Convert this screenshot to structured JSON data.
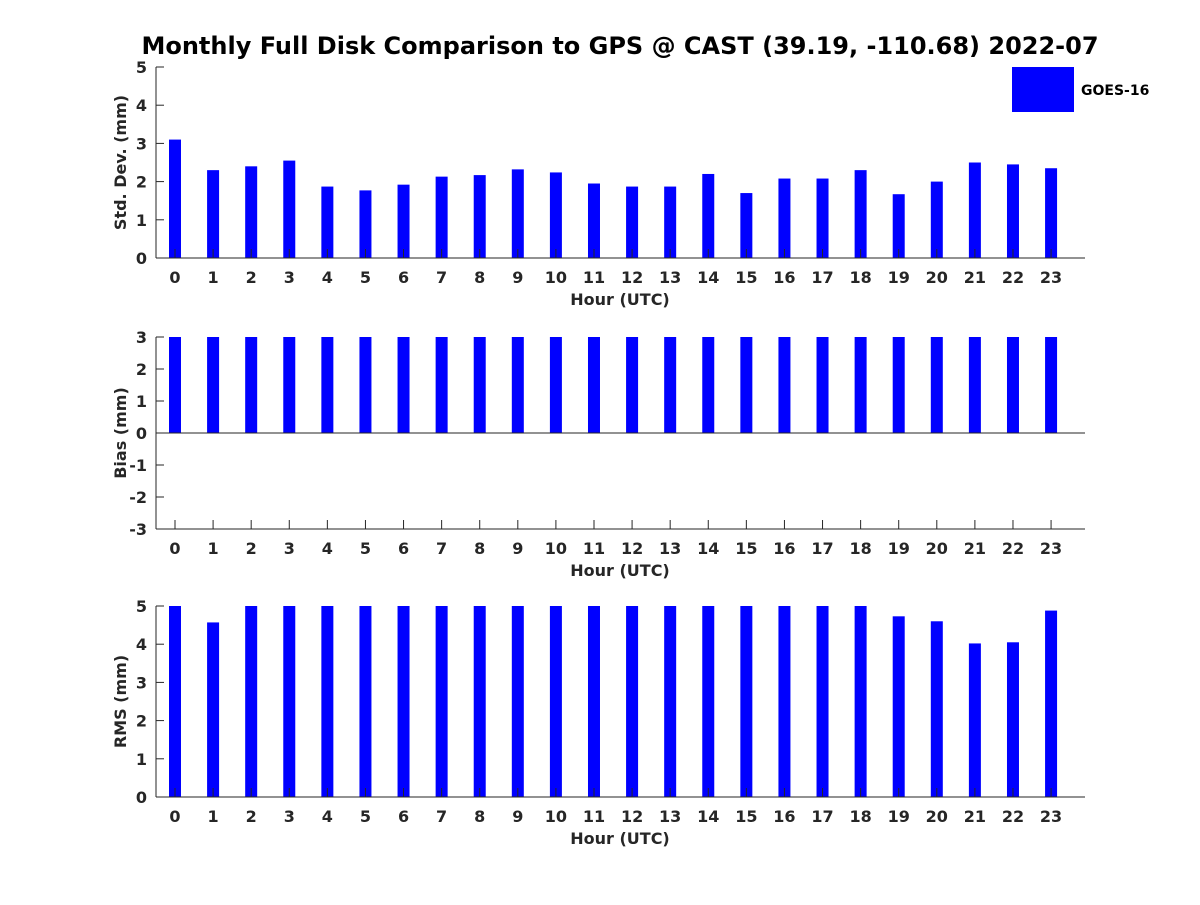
{
  "chart_data": {
    "title": "Monthly Full Disk Comparison to GPS @ CAST (39.19, -110.68) 2022-07",
    "legend": {
      "entries": [
        "GOES-16"
      ],
      "placement": "top-right"
    },
    "colors": {
      "bar": "#0000ff",
      "axis": "#262626"
    },
    "panels": [
      {
        "type": "bar",
        "ylabel": "Std. Dev. (mm)",
        "xlabel": "Hour (UTC)",
        "ylim": [
          0,
          5
        ],
        "yticks": [
          0,
          1,
          2,
          3,
          4,
          5
        ],
        "categories": [
          "0",
          "1",
          "2",
          "3",
          "4",
          "5",
          "6",
          "7",
          "8",
          "9",
          "10",
          "11",
          "12",
          "13",
          "14",
          "15",
          "16",
          "17",
          "18",
          "19",
          "20",
          "21",
          "22",
          "23"
        ],
        "series": [
          {
            "name": "GOES-16",
            "values": [
              3.1,
              2.3,
              2.4,
              2.55,
              1.87,
              1.77,
              1.92,
              2.13,
              2.17,
              2.32,
              2.24,
              1.95,
              1.87,
              1.87,
              2.2,
              1.7,
              2.08,
              2.08,
              2.3,
              1.67,
              2.0,
              2.5,
              2.45,
              2.35
            ]
          }
        ]
      },
      {
        "type": "bar",
        "ylabel": "Bias (mm)",
        "xlabel": "Hour (UTC)",
        "ylim": [
          -3,
          3
        ],
        "yticks": [
          -3,
          -2,
          -1,
          0,
          1,
          2,
          3
        ],
        "categories": [
          "0",
          "1",
          "2",
          "3",
          "4",
          "5",
          "6",
          "7",
          "8",
          "9",
          "10",
          "11",
          "12",
          "13",
          "14",
          "15",
          "16",
          "17",
          "18",
          "19",
          "20",
          "21",
          "22",
          "23"
        ],
        "series": [
          {
            "name": "GOES-16",
            "values": [
              3,
              3,
              3,
              3,
              3,
              3,
              3,
              3,
              3,
              3,
              3,
              3,
              3,
              3,
              3,
              3,
              3,
              3,
              3,
              3,
              3,
              3,
              3,
              3
            ]
          }
        ]
      },
      {
        "type": "bar",
        "ylabel": "RMS (mm)",
        "xlabel": "Hour (UTC)",
        "ylim": [
          0,
          5
        ],
        "yticks": [
          0,
          1,
          2,
          3,
          4,
          5
        ],
        "categories": [
          "0",
          "1",
          "2",
          "3",
          "4",
          "5",
          "6",
          "7",
          "8",
          "9",
          "10",
          "11",
          "12",
          "13",
          "14",
          "15",
          "16",
          "17",
          "18",
          "19",
          "20",
          "21",
          "22",
          "23"
        ],
        "series": [
          {
            "name": "GOES-16",
            "values": [
              5,
              4.57,
              5,
              5,
              5,
              5,
              5,
              5,
              5,
              5,
              5,
              5,
              5,
              5,
              5,
              5,
              5,
              5,
              5,
              4.73,
              4.6,
              4.02,
              4.05,
              4.88
            ]
          }
        ]
      }
    ]
  }
}
